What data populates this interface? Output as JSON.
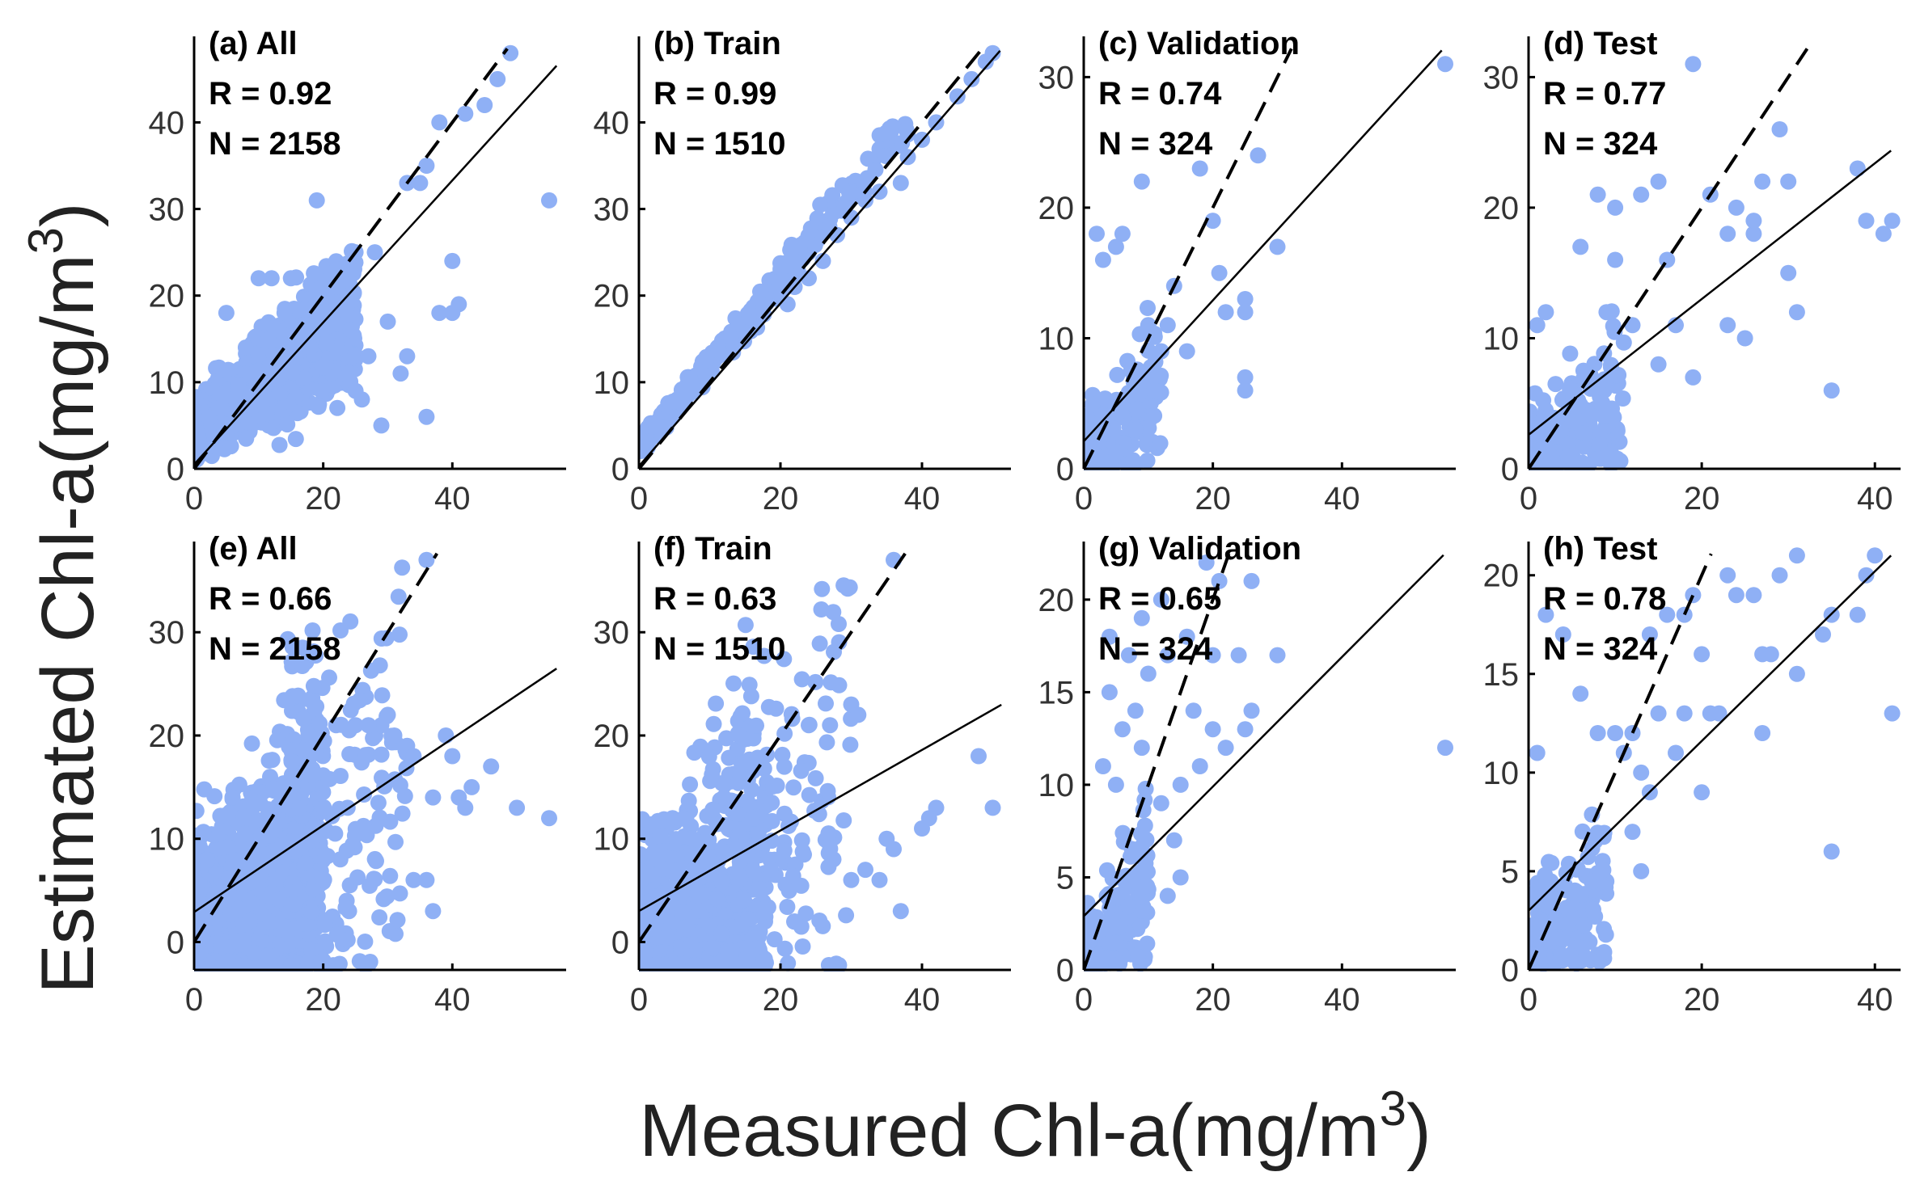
{
  "figure": {
    "ylabel": "Estimated Chl-a(mg/m",
    "xlabel": "Measured Chl-a(mg/m",
    "unit_exponent": "3",
    "marker_color": "#8fb0f5"
  },
  "chart_data": [
    {
      "id": "a",
      "type": "scatter",
      "title": "(a) All",
      "r_label": "R = 0.92",
      "n_label": "N = 2158",
      "R": 0.92,
      "N": 2158,
      "xlim": [
        0,
        57
      ],
      "ylim": [
        0,
        49
      ],
      "xticks": [
        0,
        20,
        40
      ],
      "yticks": [
        0,
        10,
        20,
        30,
        40
      ],
      "fit": {
        "slope": 0.82,
        "intercept": 0.5
      },
      "seed": 11,
      "clusters": [
        [
          1500,
          0.2,
          25,
          3,
          6,
          0.55,
          1,
          0.12
        ]
      ],
      "points": [
        [
          49,
          48
        ],
        [
          47,
          45
        ],
        [
          45,
          42
        ],
        [
          42,
          41
        ],
        [
          38,
          40
        ],
        [
          36,
          35
        ],
        [
          33,
          33
        ],
        [
          35,
          33
        ],
        [
          55,
          31
        ],
        [
          19,
          31
        ],
        [
          40,
          24
        ],
        [
          41,
          19
        ],
        [
          38,
          18
        ],
        [
          40,
          18
        ],
        [
          30,
          17
        ],
        [
          33,
          13
        ],
        [
          32,
          11
        ],
        [
          36,
          6
        ],
        [
          27,
          13
        ],
        [
          25,
          9
        ],
        [
          28,
          25
        ],
        [
          25,
          25
        ],
        [
          22,
          21
        ],
        [
          24,
          20
        ],
        [
          20,
          21
        ],
        [
          14,
          18
        ],
        [
          12,
          22
        ],
        [
          15,
          22
        ],
        [
          10,
          22
        ],
        [
          5,
          18
        ],
        [
          8,
          14
        ],
        [
          18,
          14
        ],
        [
          26,
          8
        ],
        [
          29,
          5
        ]
      ]
    },
    {
      "id": "b",
      "type": "scatter",
      "title": "(b) Train",
      "r_label": "R = 0.99",
      "n_label": "N = 1510",
      "R": 0.99,
      "N": 1510,
      "xlim": [
        0,
        52
      ],
      "ylim": [
        0,
        49
      ],
      "xticks": [
        0,
        20,
        40
      ],
      "yticks": [
        0,
        10,
        20,
        30,
        40
      ],
      "fit": {
        "slope": 0.94,
        "intercept": 0.3
      },
      "seed": 22,
      "clusters": [
        [
          300,
          0.2,
          20,
          2,
          3,
          0.95,
          0.3,
          0.03
        ],
        [
          100,
          20,
          38,
          3,
          4,
          0.95,
          0.3,
          0.03
        ]
      ],
      "points": [
        [
          50,
          48
        ],
        [
          49,
          47
        ],
        [
          47,
          45
        ],
        [
          45,
          43
        ],
        [
          42,
          40
        ],
        [
          40,
          38
        ],
        [
          38,
          36
        ],
        [
          37,
          33
        ],
        [
          34,
          32
        ],
        [
          32,
          31
        ],
        [
          30,
          29
        ],
        [
          28,
          27
        ],
        [
          26,
          24
        ],
        [
          24,
          22
        ],
        [
          22,
          21
        ],
        [
          21,
          19
        ]
      ]
    },
    {
      "id": "c",
      "type": "scatter",
      "title": "(c) Validation",
      "r_label": "R = 0.74",
      "n_label": "N = 324",
      "R": 0.74,
      "N": 324,
      "xlim": [
        0,
        57
      ],
      "ylim": [
        0,
        32.5
      ],
      "xticks": [
        0,
        20,
        40
      ],
      "yticks": [
        0,
        10,
        20,
        30
      ],
      "fit": {
        "slope": 0.54,
        "intercept": 2.1
      },
      "seed": 33,
      "clusters": [
        [
          240,
          0,
          12,
          0,
          0,
          0.5,
          2,
          0.1
        ]
      ],
      "points": [
        [
          56,
          31
        ],
        [
          27,
          24
        ],
        [
          18,
          23
        ],
        [
          20,
          19
        ],
        [
          9,
          22
        ],
        [
          30,
          17
        ],
        [
          25,
          13
        ],
        [
          25,
          12
        ],
        [
          14,
          14
        ],
        [
          21,
          15
        ],
        [
          22,
          12
        ],
        [
          25,
          7
        ],
        [
          25,
          6
        ],
        [
          6,
          18
        ],
        [
          2,
          18
        ],
        [
          5,
          17
        ],
        [
          3,
          16
        ],
        [
          10,
          11
        ],
        [
          13,
          11
        ],
        [
          12,
          9
        ],
        [
          16,
          9
        ],
        [
          11,
          6
        ],
        [
          8,
          3
        ]
      ]
    },
    {
      "id": "d",
      "type": "scatter",
      "title": "(d) Test",
      "r_label": "R = 0.77",
      "n_label": "N = 324",
      "R": 0.77,
      "N": 324,
      "xlim": [
        0,
        42.5
      ],
      "ylim": [
        0,
        32.5
      ],
      "xticks": [
        0,
        20,
        40
      ],
      "yticks": [
        0,
        10,
        20,
        30
      ],
      "fit": {
        "slope": 0.52,
        "intercept": 2.6
      },
      "seed": 44,
      "clusters": [
        [
          220,
          0,
          11,
          0,
          0,
          0.55,
          2,
          0.12
        ]
      ],
      "points": [
        [
          19,
          31
        ],
        [
          29,
          26
        ],
        [
          27,
          22
        ],
        [
          30,
          22
        ],
        [
          21,
          21
        ],
        [
          24,
          20
        ],
        [
          26,
          18
        ],
        [
          26,
          19
        ],
        [
          23,
          18
        ],
        [
          15,
          22
        ],
        [
          13,
          21
        ],
        [
          8,
          21
        ],
        [
          10,
          20
        ],
        [
          6,
          17
        ],
        [
          10,
          16
        ],
        [
          16,
          16
        ],
        [
          30,
          15
        ],
        [
          31,
          12
        ],
        [
          38,
          23
        ],
        [
          39,
          19
        ],
        [
          41,
          18
        ],
        [
          42,
          19
        ],
        [
          35,
          6
        ],
        [
          23,
          11
        ],
        [
          25,
          10
        ],
        [
          17,
          11
        ],
        [
          19,
          7
        ],
        [
          15,
          8
        ],
        [
          12,
          11
        ],
        [
          9,
          12
        ],
        [
          2,
          12
        ],
        [
          1,
          11
        ]
      ]
    },
    {
      "id": "e",
      "type": "scatter",
      "title": "(e) All",
      "r_label": "R = 0.66",
      "n_label": "N = 2158",
      "R": 0.66,
      "N": 2158,
      "xlim": [
        0,
        57
      ],
      "ylim": [
        -2.7,
        38
      ],
      "xticks": [
        0,
        20,
        40
      ],
      "yticks": [
        0,
        10,
        20,
        30
      ],
      "fit": {
        "slope": 0.42,
        "intercept": 2.9
      },
      "seed": 55,
      "clusters": [
        [
          1300,
          0,
          20,
          0,
          0,
          0.3,
          4,
          0.25
        ],
        [
          200,
          15,
          33,
          5,
          8,
          0.3,
          4.5,
          0.25
        ]
      ],
      "points": [
        [
          36,
          37
        ],
        [
          46,
          17
        ],
        [
          50,
          13
        ],
        [
          55,
          12
        ],
        [
          39,
          20
        ],
        [
          40,
          18
        ],
        [
          43,
          15
        ],
        [
          41,
          14
        ],
        [
          42,
          13
        ],
        [
          37,
          14
        ],
        [
          36,
          6
        ],
        [
          34,
          6
        ],
        [
          37,
          3
        ],
        [
          24,
          3
        ],
        [
          29,
          21
        ],
        [
          30,
          22
        ],
        [
          27,
          21
        ],
        [
          25,
          21
        ],
        [
          22,
          21
        ],
        [
          31,
          20
        ],
        [
          33,
          19
        ],
        [
          34,
          18
        ],
        [
          2,
          -2
        ],
        [
          1,
          -1
        ]
      ]
    },
    {
      "id": "f",
      "type": "scatter",
      "title": "(f) Train",
      "r_label": "R = 0.63",
      "n_label": "N = 1510",
      "R": 0.63,
      "N": 1510,
      "xlim": [
        0,
        52
      ],
      "ylim": [
        -2.7,
        38
      ],
      "xticks": [
        0,
        20,
        40
      ],
      "yticks": [
        0,
        10,
        20,
        30
      ],
      "fit": {
        "slope": 0.39,
        "intercept": 3.0
      },
      "seed": 66,
      "clusters": [
        [
          900,
          0,
          18,
          0,
          0,
          0.3,
          4,
          0.25
        ],
        [
          150,
          14,
          30,
          5,
          8,
          0.3,
          4.5,
          0.25
        ]
      ],
      "points": [
        [
          36,
          37
        ],
        [
          30,
          23
        ],
        [
          31,
          22
        ],
        [
          27,
          21
        ],
        [
          24,
          21
        ],
        [
          48,
          18
        ],
        [
          50,
          13
        ],
        [
          42,
          13
        ],
        [
          41,
          12
        ],
        [
          40,
          11
        ],
        [
          35,
          10
        ],
        [
          36,
          9
        ],
        [
          32,
          7
        ],
        [
          34,
          6
        ],
        [
          30,
          6
        ],
        [
          37,
          3
        ],
        [
          22,
          2
        ],
        [
          2,
          -2
        ],
        [
          1,
          -1
        ],
        [
          16,
          12
        ],
        [
          12,
          14
        ]
      ]
    },
    {
      "id": "g",
      "type": "scatter",
      "title": "(g) Validation",
      "r_label": "R = 0.65",
      "n_label": "N = 324",
      "R": 0.65,
      "N": 324,
      "xlim": [
        0,
        57
      ],
      "ylim": [
        0,
        22.7
      ],
      "xticks": [
        0,
        20,
        40
      ],
      "yticks": [
        0,
        5,
        10,
        15,
        20
      ],
      "fit": {
        "slope": 0.35,
        "intercept": 2.9
      },
      "seed": 77,
      "clusters": [
        [
          210,
          0,
          10,
          0,
          0,
          0.4,
          1.5,
          0.12
        ]
      ],
      "points": [
        [
          56,
          12
        ],
        [
          26,
          21
        ],
        [
          21,
          21
        ],
        [
          19,
          22
        ],
        [
          12,
          20
        ],
        [
          9,
          19
        ],
        [
          4,
          18
        ],
        [
          7,
          17
        ],
        [
          10,
          16
        ],
        [
          13,
          17
        ],
        [
          16,
          18
        ],
        [
          20,
          17
        ],
        [
          24,
          17
        ],
        [
          30,
          17
        ],
        [
          25,
          13
        ],
        [
          26,
          14
        ],
        [
          22,
          12
        ],
        [
          17,
          14
        ],
        [
          20,
          13
        ],
        [
          18,
          11
        ],
        [
          15,
          10
        ],
        [
          14,
          7
        ],
        [
          15,
          5
        ],
        [
          13,
          4
        ],
        [
          12,
          9
        ],
        [
          8,
          14
        ],
        [
          9,
          12
        ],
        [
          4,
          15
        ],
        [
          6,
          13
        ],
        [
          3,
          11
        ],
        [
          5,
          10
        ]
      ]
    },
    {
      "id": "h",
      "type": "scatter",
      "title": "(h) Test",
      "r_label": "R = 0.78",
      "n_label": "N = 324",
      "R": 0.78,
      "N": 324,
      "xlim": [
        0,
        42.5
      ],
      "ylim": [
        0,
        21.3
      ],
      "xticks": [
        0,
        20,
        40
      ],
      "yticks": [
        0,
        5,
        10,
        15,
        20
      ],
      "fit": {
        "slope": 0.43,
        "intercept": 3.0
      },
      "seed": 88,
      "clusters": [
        [
          210,
          0,
          9,
          0,
          0,
          0.45,
          1.6,
          0.14
        ]
      ],
      "points": [
        [
          40,
          21
        ],
        [
          29,
          20
        ],
        [
          31,
          21
        ],
        [
          23,
          20
        ],
        [
          26,
          19
        ],
        [
          24,
          19
        ],
        [
          19,
          19
        ],
        [
          18,
          18
        ],
        [
          16,
          18
        ],
        [
          14,
          17
        ],
        [
          20,
          16
        ],
        [
          27,
          16
        ],
        [
          28,
          16
        ],
        [
          22,
          13
        ],
        [
          21,
          13
        ],
        [
          18,
          13
        ],
        [
          17,
          11
        ],
        [
          15,
          13
        ],
        [
          12,
          12
        ],
        [
          10,
          12
        ],
        [
          11,
          11
        ],
        [
          13,
          10
        ],
        [
          14,
          9
        ],
        [
          12,
          7
        ],
        [
          13,
          5
        ],
        [
          20,
          9
        ],
        [
          27,
          12
        ],
        [
          35,
          18
        ],
        [
          38,
          18
        ],
        [
          39,
          20
        ],
        [
          42,
          13
        ],
        [
          35,
          6
        ],
        [
          2,
          18
        ],
        [
          1,
          11
        ],
        [
          4,
          17
        ],
        [
          6,
          14
        ],
        [
          8,
          12
        ],
        [
          31,
          15
        ],
        [
          34,
          17
        ]
      ]
    }
  ]
}
